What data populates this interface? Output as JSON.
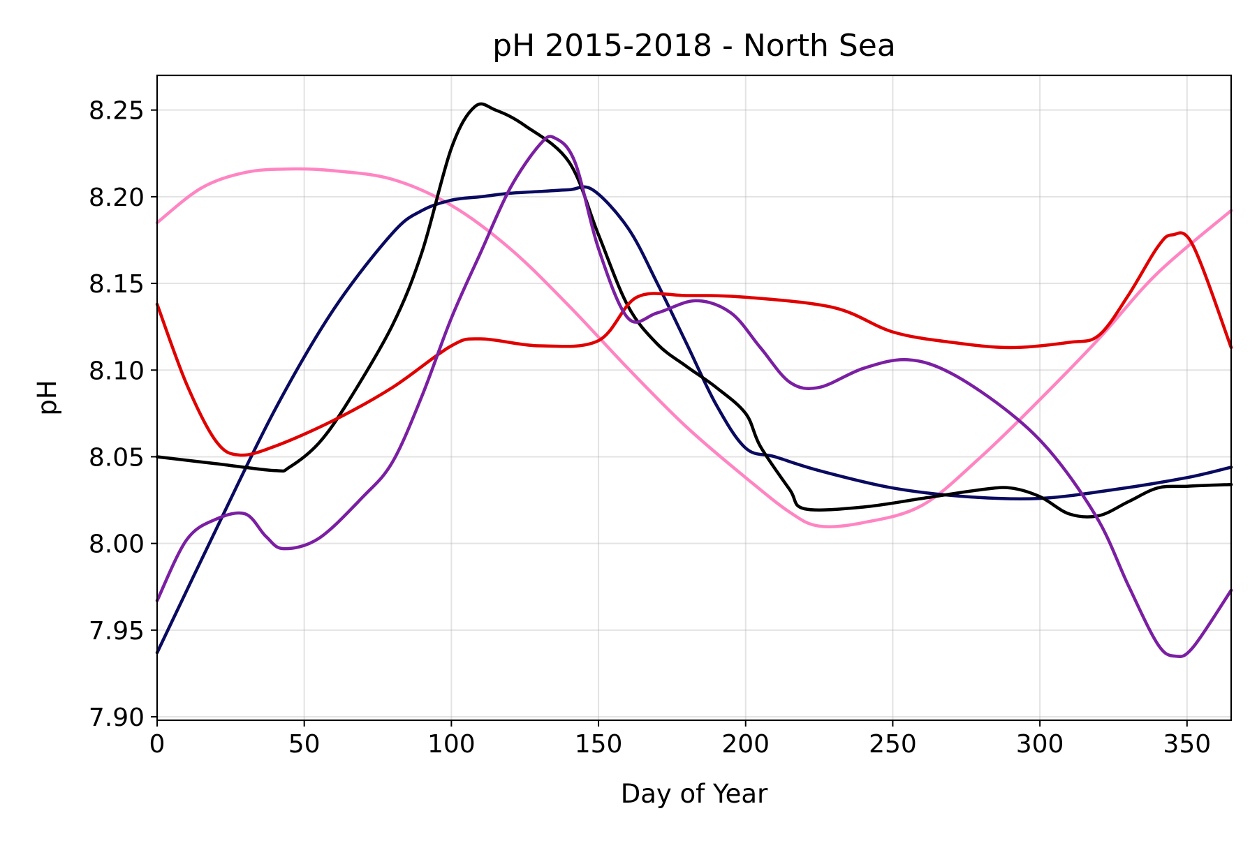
{
  "chart_data": {
    "type": "line",
    "title": "pH 2015-2018 - North Sea",
    "xlabel": "Day of Year",
    "ylabel": "pH",
    "xlim": [
      0,
      365
    ],
    "ylim": [
      7.898,
      8.27
    ],
    "grid": true,
    "legend": "none",
    "x_ticks": [
      0,
      50,
      100,
      150,
      200,
      250,
      300,
      350
    ],
    "y_ticks": [
      7.9,
      7.95,
      8.0,
      8.05,
      8.1,
      8.15,
      8.2,
      8.25
    ],
    "x_tick_labels": [
      "0",
      "50",
      "100",
      "150",
      "200",
      "250",
      "300",
      "350"
    ],
    "y_tick_labels": [
      "7.90",
      "7.95",
      "8.00",
      "8.05",
      "8.10",
      "8.15",
      "8.20",
      "8.25"
    ],
    "series": [
      {
        "color": "#000000",
        "x": [
          0,
          20,
          40,
          45,
          55,
          65,
          80,
          90,
          100,
          108,
          115,
          125,
          140,
          150,
          160,
          170,
          180,
          190,
          200,
          205,
          215,
          220,
          240,
          260,
          280,
          290,
          300,
          310,
          320,
          330,
          340,
          350,
          365
        ],
        "y": [
          8.05,
          8.046,
          8.042,
          8.044,
          8.058,
          8.082,
          8.126,
          8.168,
          8.228,
          8.252,
          8.25,
          8.241,
          8.22,
          8.178,
          8.137,
          8.115,
          8.102,
          8.09,
          8.075,
          8.056,
          8.031,
          8.02,
          8.021,
          8.026,
          8.031,
          8.032,
          8.027,
          8.017,
          8.016,
          8.024,
          8.032,
          8.033,
          8.034
        ]
      },
      {
        "color": "#0a0a60",
        "x": [
          0,
          20,
          40,
          60,
          80,
          90,
          100,
          110,
          120,
          130,
          140,
          148,
          160,
          170,
          180,
          190,
          200,
          210,
          225,
          250,
          275,
          300,
          325,
          350,
          365
        ],
        "y": [
          7.937,
          8.008,
          8.077,
          8.135,
          8.179,
          8.192,
          8.198,
          8.2,
          8.202,
          8.203,
          8.204,
          8.204,
          8.182,
          8.15,
          8.115,
          8.08,
          8.055,
          8.05,
          8.042,
          8.032,
          8.027,
          8.026,
          8.031,
          8.038,
          8.044
        ]
      },
      {
        "color": "#7b1fa2",
        "x": [
          0,
          10,
          20,
          30,
          37,
          43,
          55,
          70,
          80,
          90,
          100,
          110,
          120,
          130,
          135,
          142,
          150,
          160,
          170,
          183,
          195,
          205,
          215,
          225,
          240,
          255,
          270,
          290,
          305,
          320,
          330,
          340,
          346,
          352,
          365
        ],
        "y": [
          7.967,
          8.002,
          8.014,
          8.017,
          8.004,
          7.997,
          8.003,
          8.027,
          8.047,
          8.085,
          8.13,
          8.168,
          8.205,
          8.23,
          8.234,
          8.22,
          8.17,
          8.13,
          8.133,
          8.14,
          8.133,
          8.113,
          8.093,
          8.09,
          8.101,
          8.106,
          8.098,
          8.075,
          8.05,
          8.013,
          7.976,
          7.942,
          7.935,
          7.94,
          7.973
        ]
      },
      {
        "color": "#e00000",
        "x": [
          0,
          10,
          20,
          28,
          40,
          60,
          80,
          100,
          110,
          130,
          150,
          163,
          180,
          200,
          230,
          250,
          270,
          290,
          310,
          320,
          330,
          340,
          345,
          352,
          365
        ],
        "y": [
          8.138,
          8.092,
          8.059,
          8.051,
          8.056,
          8.071,
          8.09,
          8.114,
          8.118,
          8.114,
          8.117,
          8.142,
          8.143,
          8.142,
          8.136,
          8.122,
          8.116,
          8.113,
          8.116,
          8.12,
          8.143,
          8.171,
          8.178,
          8.172,
          8.113
        ]
      },
      {
        "color": "#ff85c2",
        "x": [
          0,
          15,
          30,
          45,
          60,
          80,
          100,
          120,
          140,
          160,
          180,
          200,
          215,
          225,
          240,
          260,
          280,
          300,
          320,
          340,
          365
        ],
        "y": [
          8.185,
          8.205,
          8.214,
          8.216,
          8.215,
          8.21,
          8.195,
          8.17,
          8.137,
          8.101,
          8.067,
          8.038,
          8.018,
          8.01,
          8.012,
          8.022,
          8.05,
          8.083,
          8.118,
          8.156,
          8.192
        ]
      }
    ]
  }
}
